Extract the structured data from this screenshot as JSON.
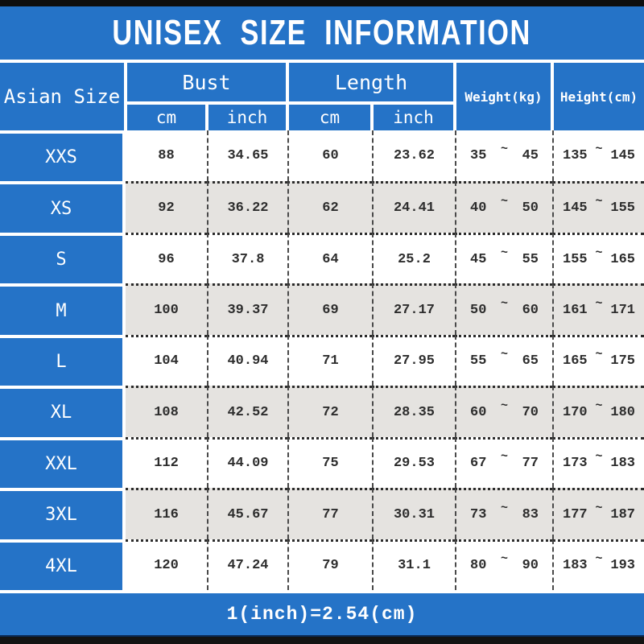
{
  "title": "UNISEX SIZE INFORMATION",
  "colors": {
    "accent_blue": "#2573c7",
    "row_alt_gray": "#e5e3e0",
    "bar_black": "#131313"
  },
  "chart_data": {
    "type": "table",
    "title": "UNISEX SIZE INFORMATION",
    "row_header_label": "Asian Size",
    "column_groups": [
      {
        "label": "Bust",
        "children": [
          "cm",
          "inch"
        ]
      },
      {
        "label": "Length",
        "children": [
          "cm",
          "inch"
        ]
      },
      {
        "label": "Weight(kg)",
        "children": []
      },
      {
        "label": "Height(cm)",
        "children": []
      }
    ],
    "symbols": {
      "range_separator": "~"
    },
    "rows": [
      {
        "size": "XXS",
        "bust_cm": "88",
        "bust_inch": "34.65",
        "length_cm": "60",
        "length_inch": "23.62",
        "weight_min": "35",
        "weight_max": "45",
        "height_min": "135",
        "height_max": "145"
      },
      {
        "size": "XS",
        "bust_cm": "92",
        "bust_inch": "36.22",
        "length_cm": "62",
        "length_inch": "24.41",
        "weight_min": "40",
        "weight_max": "50",
        "height_min": "145",
        "height_max": "155"
      },
      {
        "size": "S",
        "bust_cm": "96",
        "bust_inch": "37.8",
        "length_cm": "64",
        "length_inch": "25.2",
        "weight_min": "45",
        "weight_max": "55",
        "height_min": "155",
        "height_max": "165"
      },
      {
        "size": "M",
        "bust_cm": "100",
        "bust_inch": "39.37",
        "length_cm": "69",
        "length_inch": "27.17",
        "weight_min": "50",
        "weight_max": "60",
        "height_min": "161",
        "height_max": "171"
      },
      {
        "size": "L",
        "bust_cm": "104",
        "bust_inch": "40.94",
        "length_cm": "71",
        "length_inch": "27.95",
        "weight_min": "55",
        "weight_max": "65",
        "height_min": "165",
        "height_max": "175"
      },
      {
        "size": "XL",
        "bust_cm": "108",
        "bust_inch": "42.52",
        "length_cm": "72",
        "length_inch": "28.35",
        "weight_min": "60",
        "weight_max": "70",
        "height_min": "170",
        "height_max": "180"
      },
      {
        "size": "XXL",
        "bust_cm": "112",
        "bust_inch": "44.09",
        "length_cm": "75",
        "length_inch": "29.53",
        "weight_min": "67",
        "weight_max": "77",
        "height_min": "173",
        "height_max": "183"
      },
      {
        "size": "3XL",
        "bust_cm": "116",
        "bust_inch": "45.67",
        "length_cm": "77",
        "length_inch": "30.31",
        "weight_min": "73",
        "weight_max": "83",
        "height_min": "177",
        "height_max": "187"
      },
      {
        "size": "4XL",
        "bust_cm": "120",
        "bust_inch": "47.24",
        "length_cm": "79",
        "length_inch": "31.1",
        "weight_min": "80",
        "weight_max": "90",
        "height_min": "183",
        "height_max": "193"
      }
    ],
    "footnote": "1(inch)=2.54(cm)"
  },
  "footer": {
    "note": "1(inch)=2.54(cm)"
  }
}
